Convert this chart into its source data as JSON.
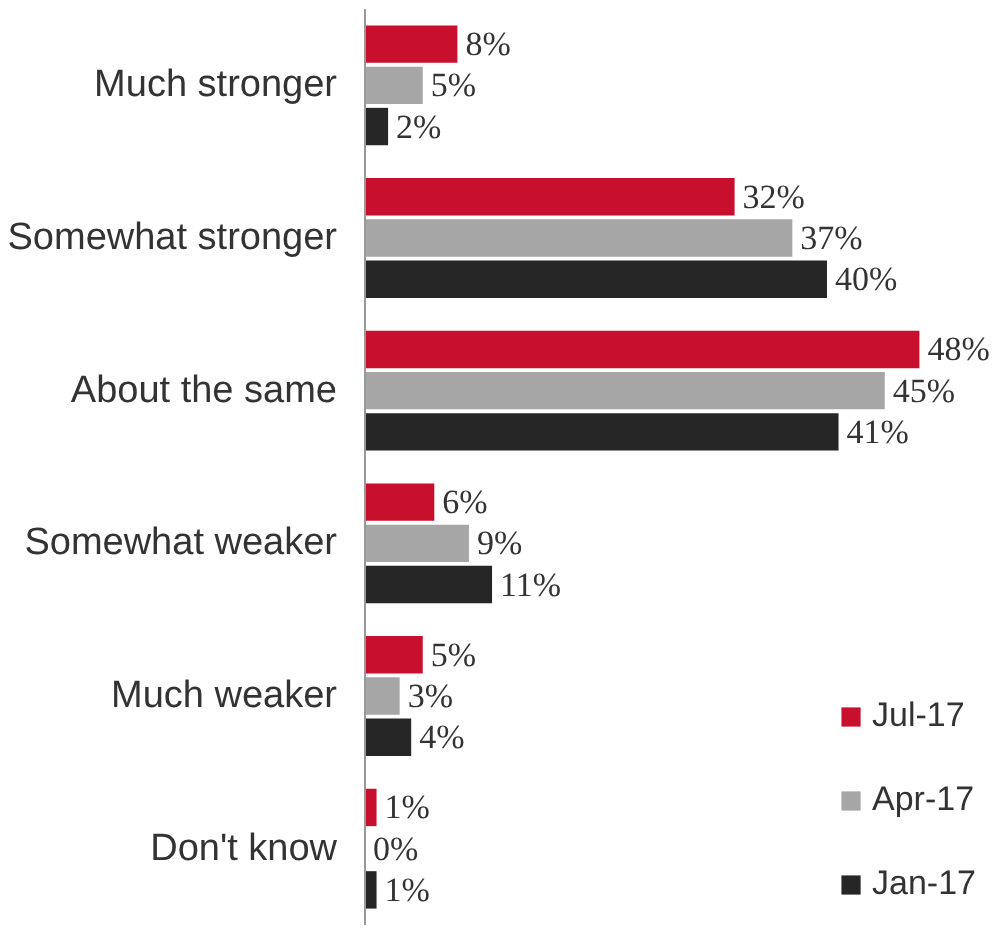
{
  "chart_data": {
    "type": "bar",
    "orientation": "horizontal",
    "categories": [
      "Much stronger",
      "Somewhat stronger",
      "About the same",
      "Somewhat weaker",
      "Much weaker",
      "Don't know"
    ],
    "series": [
      {
        "name": "Jul-17",
        "color": "#c8102e",
        "values": [
          8,
          32,
          48,
          6,
          5,
          1
        ],
        "value_labels": [
          "8%",
          "32%",
          "48%",
          "6%",
          "5%",
          "1%"
        ]
      },
      {
        "name": "Apr-17",
        "color": "#a6a6a6",
        "values": [
          5,
          37,
          45,
          9,
          3,
          0
        ],
        "value_labels": [
          "5%",
          "37%",
          "45%",
          "9%",
          "3%",
          "0%"
        ]
      },
      {
        "name": "Jan-17",
        "color": "#262626",
        "values": [
          2,
          40,
          41,
          11,
          4,
          1
        ],
        "value_labels": [
          "2%",
          "40%",
          "41%",
          "11%",
          "4%",
          "1%"
        ]
      }
    ],
    "legend": "bottom right",
    "grid": false
  }
}
